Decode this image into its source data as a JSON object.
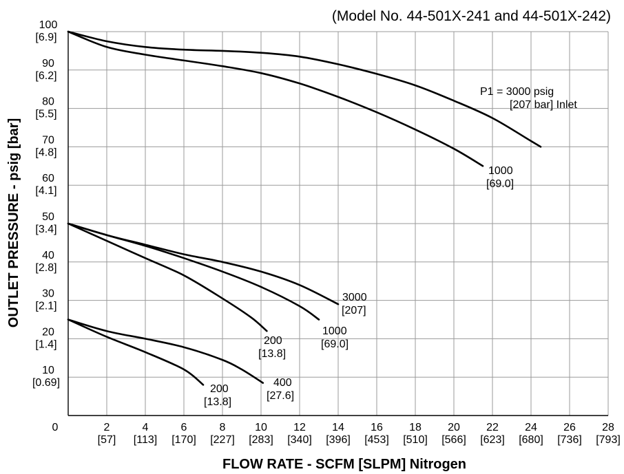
{
  "chart_data": {
    "type": "line",
    "title": "(Model No. 44-501X-241 and 44-501X-242)",
    "xlabel": "FLOW RATE - SCFM [SLPM] Nitrogen",
    "ylabel": "OUTLET PRESSURE - psig [bar]",
    "xlim": [
      0,
      28
    ],
    "ylim": [
      0,
      100
    ],
    "grid": true,
    "x_ticks": [
      {
        "value": 0,
        "label": "0",
        "sub": ""
      },
      {
        "value": 2,
        "label": "2",
        "sub": "[57]"
      },
      {
        "value": 4,
        "label": "4",
        "sub": "[113]"
      },
      {
        "value": 6,
        "label": "6",
        "sub": "[170]"
      },
      {
        "value": 8,
        "label": "8",
        "sub": "[227]"
      },
      {
        "value": 10,
        "label": "10",
        "sub": "[283]"
      },
      {
        "value": 12,
        "label": "12",
        "sub": "[340]"
      },
      {
        "value": 14,
        "label": "14",
        "sub": "[396]"
      },
      {
        "value": 16,
        "label": "16",
        "sub": "[453]"
      },
      {
        "value": 18,
        "label": "18",
        "sub": "[510]"
      },
      {
        "value": 20,
        "label": "20",
        "sub": "[566]"
      },
      {
        "value": 22,
        "label": "22",
        "sub": "[623]"
      },
      {
        "value": 24,
        "label": "24",
        "sub": "[680]"
      },
      {
        "value": 26,
        "label": "26",
        "sub": "[736]"
      },
      {
        "value": 28,
        "label": "28",
        "sub": "[793]"
      }
    ],
    "y_ticks": [
      {
        "value": 10,
        "label": "10",
        "sub": "[0.69]"
      },
      {
        "value": 20,
        "label": "20",
        "sub": "[1.4]"
      },
      {
        "value": 30,
        "label": "30",
        "sub": "[2.1]"
      },
      {
        "value": 40,
        "label": "40",
        "sub": "[2.8]"
      },
      {
        "value": 50,
        "label": "50",
        "sub": "[3.4]"
      },
      {
        "value": 60,
        "label": "60",
        "sub": "[4.1]"
      },
      {
        "value": 70,
        "label": "70",
        "sub": "[4.8]"
      },
      {
        "value": 80,
        "label": "80",
        "sub": "[5.5]"
      },
      {
        "value": 90,
        "label": "90",
        "sub": "[6.2]"
      },
      {
        "value": 100,
        "label": "100",
        "sub": "[6.9]"
      }
    ],
    "series": [
      {
        "label_lines": [
          "P1 = 3000 psig",
          "[207 bar] Inlet"
        ],
        "points": [
          [
            0,
            100
          ],
          [
            2,
            97.5
          ],
          [
            4,
            96
          ],
          [
            6,
            95.3
          ],
          [
            8,
            95
          ],
          [
            10,
            94.5
          ],
          [
            12,
            93.5
          ],
          [
            14,
            91.5
          ],
          [
            16,
            89
          ],
          [
            18,
            86
          ],
          [
            20,
            82
          ],
          [
            22,
            77.5
          ],
          [
            24,
            71.5
          ],
          [
            24.5,
            70
          ]
        ]
      },
      {
        "label_lines": [
          "1000",
          "[69.0]"
        ],
        "points": [
          [
            0,
            100
          ],
          [
            2,
            96
          ],
          [
            4,
            94
          ],
          [
            6,
            92.5
          ],
          [
            8,
            91
          ],
          [
            10,
            89.2
          ],
          [
            12,
            86.5
          ],
          [
            14,
            83
          ],
          [
            16,
            79
          ],
          [
            18,
            74.5
          ],
          [
            20,
            69.5
          ],
          [
            21.5,
            65
          ]
        ]
      },
      {
        "label_lines": [
          "3000",
          "[207]"
        ],
        "points": [
          [
            0,
            50
          ],
          [
            2,
            47
          ],
          [
            4,
            44.5
          ],
          [
            6,
            42
          ],
          [
            8,
            40
          ],
          [
            10,
            37.5
          ],
          [
            12,
            34
          ],
          [
            14,
            29
          ]
        ]
      },
      {
        "label_lines": [
          "1000",
          "[69.0]"
        ],
        "points": [
          [
            0,
            50
          ],
          [
            2,
            47
          ],
          [
            4,
            44.2
          ],
          [
            6,
            41
          ],
          [
            8,
            37.5
          ],
          [
            10,
            33.5
          ],
          [
            12,
            28.5
          ],
          [
            13,
            25
          ]
        ]
      },
      {
        "label_lines": [
          "200",
          "[13.8]"
        ],
        "points": [
          [
            0,
            50
          ],
          [
            2,
            45.5
          ],
          [
            4,
            41
          ],
          [
            6,
            36.5
          ],
          [
            8,
            30.5
          ],
          [
            9.5,
            25.5
          ],
          [
            10.3,
            22
          ]
        ]
      },
      {
        "label_lines": [
          "400",
          "[27.6]"
        ],
        "points": [
          [
            0,
            25
          ],
          [
            2,
            22
          ],
          [
            4,
            20
          ],
          [
            6,
            17.8
          ],
          [
            8,
            14.5
          ],
          [
            9,
            12
          ],
          [
            10.1,
            8.5
          ]
        ]
      },
      {
        "label_lines": [
          "200",
          "[13.8]"
        ],
        "points": [
          [
            0,
            25
          ],
          [
            2,
            20.5
          ],
          [
            4,
            16.5
          ],
          [
            6,
            12
          ],
          [
            7,
            8
          ]
        ]
      }
    ]
  }
}
